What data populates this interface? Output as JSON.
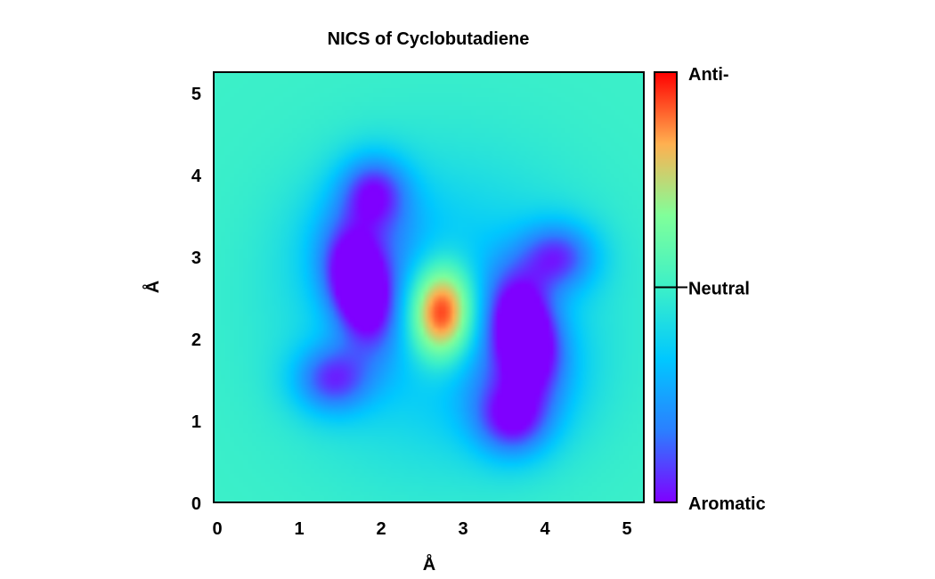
{
  "chart_data": {
    "type": "heatmap",
    "title": "NICS of Cyclobutadiene",
    "xlabel": "Å",
    "ylabel": "Å",
    "xlim": [
      0,
      5.25
    ],
    "ylim": [
      0,
      5.25
    ],
    "x_ticks": [
      "0",
      "1",
      "2",
      "3",
      "4",
      "5"
    ],
    "y_ticks": [
      "0",
      "1",
      "2",
      "3",
      "4",
      "5"
    ],
    "grid": false,
    "colorbar": {
      "labels": {
        "top": "Anti-",
        "middle": "Neutral",
        "bottom": "Aromatic"
      },
      "range": [
        -1,
        1
      ],
      "neutral_value": 0,
      "colormap": [
        "#7f00ff",
        "#2b7fff",
        "#00c8ff",
        "#3cf0c8",
        "#80ff9a",
        "#ffb050",
        "#ff0000"
      ]
    },
    "background_value": 0,
    "features": [
      {
        "label": "anti-aromatic center",
        "x": 2.78,
        "y": 2.32,
        "sx": 0.28,
        "sy": 0.42,
        "rotation_deg": 0,
        "value": 1.35
      },
      {
        "label": "aromatic lobe left",
        "x": 1.78,
        "y": 2.6,
        "sx": 0.26,
        "sy": 0.48,
        "rotation_deg": 15,
        "value": -1.05
      },
      {
        "label": "aromatic lobe right",
        "x": 3.8,
        "y": 2.1,
        "sx": 0.28,
        "sy": 0.48,
        "rotation_deg": 15,
        "value": -1.05
      },
      {
        "label": "aromatic lobe upper",
        "x": 1.95,
        "y": 3.8,
        "sx": 0.3,
        "sy": 0.32,
        "rotation_deg": 0,
        "value": -0.72
      },
      {
        "label": "aromatic lobe upper-right",
        "x": 4.2,
        "y": 3.0,
        "sx": 0.34,
        "sy": 0.3,
        "rotation_deg": 0,
        "value": -0.72
      },
      {
        "label": "aromatic lobe lower-left",
        "x": 1.45,
        "y": 1.5,
        "sx": 0.34,
        "sy": 0.3,
        "rotation_deg": 0,
        "value": -0.72
      },
      {
        "label": "aromatic lobe lower",
        "x": 3.65,
        "y": 1.0,
        "sx": 0.32,
        "sy": 0.32,
        "rotation_deg": 0,
        "value": -0.72
      },
      {
        "label": "ring halo",
        "x": 2.78,
        "y": 2.32,
        "sx": 1.2,
        "sy": 1.2,
        "rotation_deg": 0,
        "value": -0.42
      },
      {
        "label": "halo diagonal 1",
        "x": 1.85,
        "y": 3.1,
        "sx": 0.55,
        "sy": 0.55,
        "rotation_deg": 0,
        "value": -0.35
      },
      {
        "label": "halo diagonal 2",
        "x": 3.7,
        "y": 1.55,
        "sx": 0.55,
        "sy": 0.55,
        "rotation_deg": 0,
        "value": -0.35
      }
    ]
  }
}
